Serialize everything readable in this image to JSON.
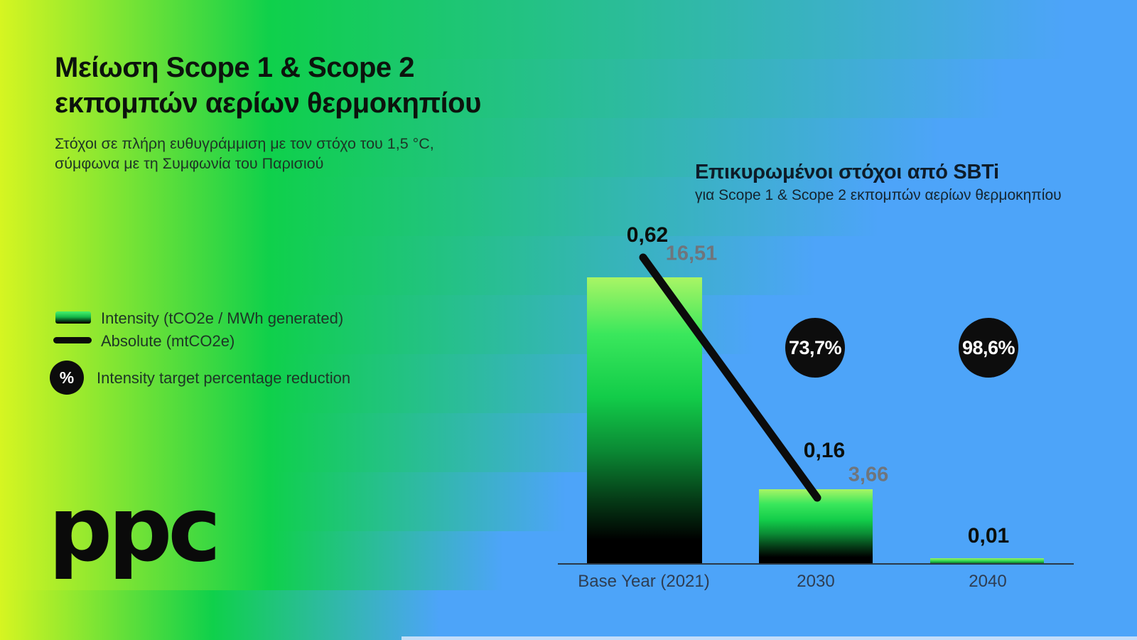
{
  "header": {
    "title_line1": "Μείωση Scope 1 & Scope 2",
    "title_line2": "εκπομπών αερίων θερμοκηπίου",
    "subtitle_line1": "Στόχοι σε πλήρη ευθυγράμμιση με τον στόχο του 1,5 °C,",
    "subtitle_line2": "σύμφωνα με τη Συμφωνία του Παρισιού"
  },
  "legend": {
    "percent_symbol": "%",
    "percent_label": "Intensity target percentage reduction"
  },
  "logo_text": "ppc",
  "chart_data": {
    "type": "bar",
    "title": "Επικυρωμένοι στόχοι από SBTi",
    "subtitle": "για Scope 1 & Scope 2 εκπομπών αερίων θερμοκηπίου",
    "categories": [
      "Base Year (2021)",
      "2030",
      "2040"
    ],
    "series": [
      {
        "name": "Intensity (tCO2e / MWh generated)",
        "type": "bar",
        "values": [
          0.62,
          0.16,
          0.01
        ],
        "display_labels": [
          "0,62",
          "0,16",
          "0,01"
        ]
      },
      {
        "name": "Absolute (mtCO2e)",
        "type": "line",
        "values": [
          16.51,
          3.66
        ],
        "display_labels": [
          "16,51",
          "3,66"
        ]
      }
    ],
    "reduction_badges": [
      {
        "category": "2030",
        "value_pct": 73.7,
        "label": "73,7%"
      },
      {
        "category": "2040",
        "value_pct": 98.6,
        "label": "98,6%"
      }
    ],
    "legend_position": "left",
    "grid": false,
    "y_axis_visible": false
  },
  "colors": {
    "bg_yellow": "#d6f521",
    "bg_green": "#0fd04b",
    "bg_blue": "#4da4f9",
    "bar_gradient_top": "#a9f565",
    "bar_gradient_mid": "#12cc49",
    "bar_gradient_bottom": "#000000",
    "absolute_line": "#0b0b0b",
    "badge_background": "#0d0d0d",
    "badge_text": "#ffffff",
    "value_label_dark": "#0b0f0b",
    "value_label_gray": "#6f757c",
    "axis": "#2b3948",
    "tick_text": "#2e3d52"
  }
}
